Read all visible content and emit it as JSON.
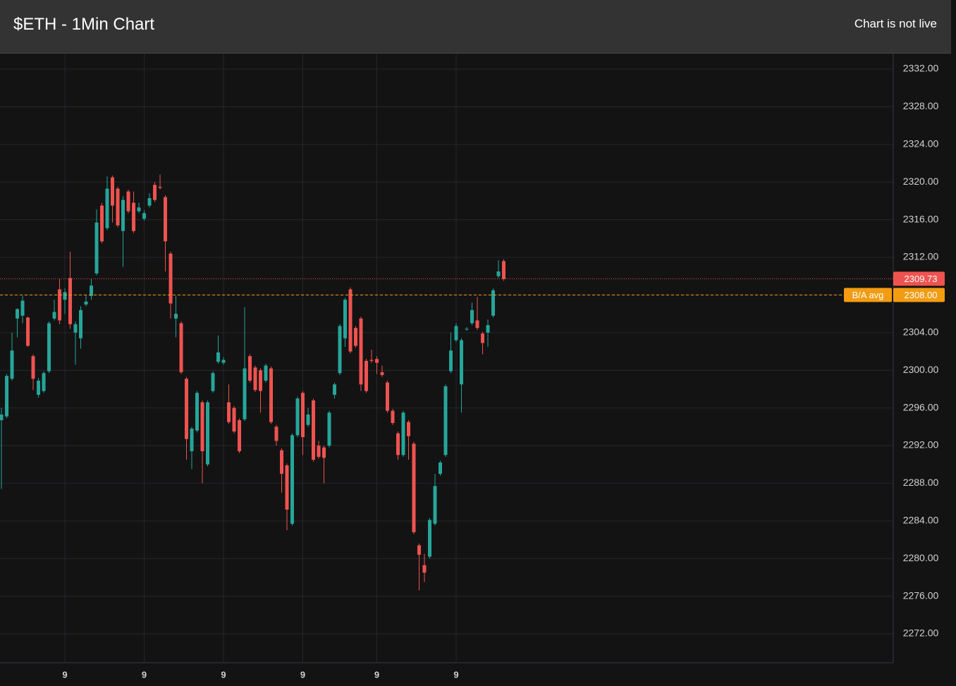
{
  "header": {
    "title": "$ETH - 1Min Chart",
    "status": "Chart is not live"
  },
  "chart_data": {
    "type": "candlestick",
    "x": [
      0,
      1,
      2,
      3,
      4,
      5,
      6,
      7,
      8,
      9,
      10,
      11,
      12,
      13,
      14,
      15,
      16,
      17,
      18,
      19,
      20,
      21,
      22,
      23,
      24,
      25,
      26,
      27,
      28,
      29,
      30,
      31,
      32,
      33,
      34,
      35,
      36,
      37,
      38,
      39,
      40,
      41,
      42,
      43,
      44,
      45,
      46,
      47,
      48,
      49,
      50,
      51,
      52,
      53,
      54,
      55,
      56,
      57,
      58,
      59,
      60,
      61,
      62,
      63,
      64,
      65,
      66,
      67,
      68,
      69,
      70,
      71,
      72,
      73,
      74,
      75,
      76,
      77,
      78,
      79,
      80,
      81,
      82,
      83,
      84,
      85,
      86,
      87,
      88,
      89,
      90,
      91,
      92,
      93,
      94,
      95
    ],
    "open": [
      2294.7,
      2295.1,
      2299.1,
      2305.5,
      2305.8,
      2305.6,
      2301.5,
      2297.4,
      2297.8,
      2299.9,
      2305.5,
      2308.6,
      2307.5,
      2309.8,
      2304,
      2303.4,
      2307,
      2307.9,
      2310.3,
      2317.5,
      2315.1,
      2320.5,
      2319.3,
      2314.8,
      2319,
      2317.8,
      2316.9,
      2316.1,
      2317.5,
      2319.7,
      2319.5,
      2318.4,
      2312.4,
      2305.5,
      2305,
      2299.1,
      2291.4,
      2293.6,
      2296.6,
      2290,
      2297.8,
      2300.9,
      2300.8,
      2296.6,
      2296,
      2294.7,
      2294.8,
      2301.5,
      2300.3,
      2300,
      2298.9,
      2300.2,
      2294,
      2291.5,
      2289.9,
      2283.7,
      2293.1,
      2297.6,
      2294.2,
      2296.8,
      2292,
      2291.8,
      2292,
      2297.4,
      2299.7,
      2303.4,
      2308.6,
      2304.5,
      2305.5,
      2301,
      2301.1,
      2301.2,
      2299.8,
      2298.7,
      2295.7,
      2293.3,
      2291,
      2294.5,
      2292.2,
      2281.4,
      2279.3,
      2280.2,
      2283.7,
      2289,
      2291,
      2299.9,
      2303.2,
      2298.5,
      2304.4,
      2305,
      2305.3,
      2303.9,
      2304,
      2305.8,
      2310,
      2311.6
    ],
    "high": [
      2296,
      2299.6,
      2304,
      2306.6,
      2307.9,
      2305.7,
      2301.7,
      2299.2,
      2299.9,
      2305.2,
      2307.5,
      2309.7,
      2308.7,
      2312.6,
      2305.2,
      2306.8,
      2308,
      2309.7,
      2317.1,
      2317.8,
      2320.6,
      2320.7,
      2319.5,
      2318.5,
      2319.2,
      2319,
      2317.8,
      2317,
      2318.8,
      2320,
      2320.8,
      2318.6,
      2312.6,
      2307.9,
      2305.2,
      2299.3,
      2294,
      2297.8,
      2296.8,
      2296.8,
      2299.9,
      2303.7,
      2301.4,
      2298.5,
      2296.2,
      2294.9,
      2306.7,
      2301.7,
      2300.5,
      2300.2,
      2300.7,
      2300.4,
      2294.2,
      2291.7,
      2290.1,
      2293.3,
      2297.2,
      2297.8,
      2296,
      2297,
      2292.5,
      2292,
      2295.7,
      2298.7,
      2304.9,
      2307.7,
      2308.8,
      2304.7,
      2305.7,
      2301.2,
      2302.2,
      2301.5,
      2300.5,
      2298.9,
      2295.9,
      2293.5,
      2295.7,
      2294.7,
      2292.4,
      2281.6,
      2280.5,
      2284.3,
      2289,
      2290.4,
      2298.5,
      2304,
      2305,
      2303.4,
      2304.6,
      2307.2,
      2307.8,
      2304.1,
      2305.4,
      2308.7,
      2311.7,
      2311.8
    ],
    "low": [
      2287.4,
      2294.9,
      2298.9,
      2303.5,
      2305,
      2302.5,
      2297.9,
      2297.1,
      2297.6,
      2299.7,
      2305.3,
      2304.9,
      2306,
      2304.4,
      2300.6,
      2302.3,
      2306.8,
      2307.5,
      2310.1,
      2313.5,
      2314.9,
      2315.7,
      2315.2,
      2311,
      2316.7,
      2314.6,
      2316.7,
      2315.9,
      2317.3,
      2317.9,
      2319.2,
      2310.5,
      2305.5,
      2303.5,
      2299.6,
      2290.5,
      2289.5,
      2293.4,
      2288,
      2289.8,
      2297.6,
      2300.7,
      2300.6,
      2294.3,
      2293.3,
      2291.2,
      2294.6,
      2298.7,
      2297.7,
      2295.5,
      2298.7,
      2294.3,
      2292,
      2287,
      2283,
      2283.5,
      2292.9,
      2291,
      2294,
      2290.3,
      2290.6,
      2288,
      2291.8,
      2297,
      2299.5,
      2302.5,
      2301.8,
      2302.4,
      2297.8,
      2297.6,
      2300.8,
      2299.6,
      2299.3,
      2295.5,
      2294.2,
      2290.5,
      2290.8,
      2290.5,
      2282.6,
      2276.6,
      2277.5,
      2280,
      2283.5,
      2288.8,
      2290.8,
      2299.7,
      2303,
      2295.5,
      2304.2,
      2304.8,
      2304.3,
      2301.7,
      2302.5,
      2305.6,
      2309.8,
      2309.5
    ],
    "close": [
      2295.3,
      2299.4,
      2302.1,
      2306.5,
      2307.4,
      2302.6,
      2299.1,
      2298.9,
      2299.7,
      2305,
      2306.2,
      2305.3,
      2308.3,
      2304.9,
      2304.9,
      2306.4,
      2307.3,
      2309,
      2315.7,
      2313.7,
      2319.3,
      2317.5,
      2315.4,
      2318.1,
      2316.9,
      2314.8,
      2317.3,
      2316.7,
      2318.3,
      2318.1,
      2319.4,
      2313.7,
      2307.1,
      2306,
      2299.8,
      2292.7,
      2293.8,
      2297.6,
      2291.4,
      2296.6,
      2299.7,
      2301.9,
      2301.1,
      2294.5,
      2293.5,
      2291.4,
      2300.2,
      2298.9,
      2297.9,
      2297.8,
      2300.5,
      2294.5,
      2292.5,
      2289,
      2285.2,
      2293.1,
      2297,
      2292.9,
      2295.3,
      2290.5,
      2290.8,
      2290.7,
      2295.5,
      2298.5,
      2304.7,
      2307.5,
      2302,
      2302.6,
      2298.5,
      2297.8,
      2301,
      2300.8,
      2299.5,
      2295.7,
      2294.4,
      2291,
      2295.5,
      2293,
      2282.8,
      2280.4,
      2278.5,
      2284.1,
      2287.7,
      2290.2,
      2298.3,
      2302.1,
      2304.7,
      2303.2,
      2304.4,
      2306.4,
      2304.5,
      2302.9,
      2304.8,
      2308.5,
      2310.5,
      2309.7
    ],
    "up_color": "#26a69a",
    "down_color": "#ef5350",
    "xlim": [
      -0.27,
      168.67
    ],
    "xticks": [
      {
        "value": 12,
        "label": "9"
      },
      {
        "value": 27,
        "label": "9"
      },
      {
        "value": 42,
        "label": "9"
      },
      {
        "value": 57,
        "label": "9"
      },
      {
        "value": 71,
        "label": "9"
      },
      {
        "value": 86,
        "label": "9"
      }
    ],
    "ylim": [
      2268.93,
      2333.65
    ],
    "yticks": [
      {
        "value": 2272,
        "label": "2272.00"
      },
      {
        "value": 2276,
        "label": "2276.00"
      },
      {
        "value": 2280,
        "label": "2280.00"
      },
      {
        "value": 2284,
        "label": "2284.00"
      },
      {
        "value": 2288,
        "label": "2288.00"
      },
      {
        "value": 2292,
        "label": "2292.00"
      },
      {
        "value": 2296,
        "label": "2296.00"
      },
      {
        "value": 2300,
        "label": "2300.00"
      },
      {
        "value": 2304,
        "label": "2304.00"
      },
      {
        "value": 2308,
        "label": "2308.00"
      },
      {
        "value": 2312,
        "label": "2312.00"
      },
      {
        "value": 2316,
        "label": "2316.00"
      },
      {
        "value": 2320,
        "label": "2320.00"
      },
      {
        "value": 2324,
        "label": "2324.00"
      },
      {
        "value": 2328,
        "label": "2328.00"
      },
      {
        "value": 2332,
        "label": "2332.00"
      }
    ],
    "grid": true,
    "price_lines": [
      {
        "value": 2309.73,
        "color": "#ef5350",
        "style": "dotted"
      },
      {
        "name": "B/A avg",
        "value": 2308,
        "value_label": "2308.00",
        "color": "#f39c12",
        "style": "dashed"
      }
    ]
  }
}
